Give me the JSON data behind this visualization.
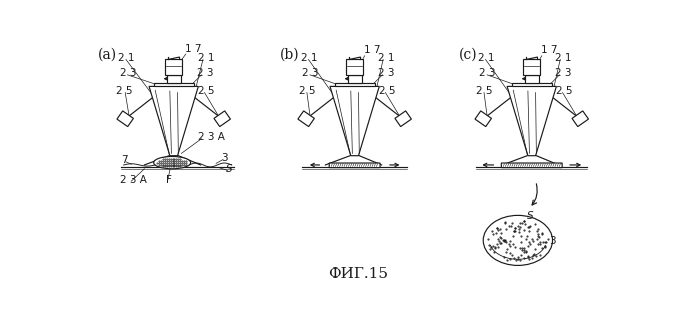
{
  "bg_color": "#ffffff",
  "line_color": "#1a1a1a",
  "title": "ФИГ.15",
  "title_fontsize": 11,
  "label_fontsize": 7.5,
  "panel_labels": [
    "(a)",
    "(b)",
    "(c)"
  ],
  "panel_label_fontsize": 10,
  "panels": {
    "a": {
      "ox": 110,
      "oy": 170
    },
    "b": {
      "ox": 345,
      "oy": 170
    },
    "c": {
      "ox": 575,
      "oy": 170
    }
  }
}
